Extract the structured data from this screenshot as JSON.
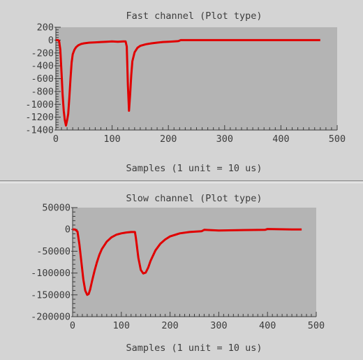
{
  "chart_data": [
    {
      "type": "line",
      "title": "Fast channel (Plot type)",
      "xlabel": "Samples (1 unit = 10 us)",
      "ylabel": "",
      "xlim": [
        0,
        500
      ],
      "ylim": [
        -1400,
        200
      ],
      "x_ticks": [
        "0",
        "100",
        "200",
        "300",
        "400",
        "500"
      ],
      "y_ticks": [
        "200",
        "0",
        "-200",
        "-400",
        "-600",
        "-800",
        "-1000",
        "-1200",
        "-1400"
      ],
      "x_tick_values": [
        0,
        100,
        200,
        300,
        400,
        500
      ],
      "y_tick_values": [
        200,
        0,
        -200,
        -400,
        -600,
        -800,
        -1000,
        -1200,
        -1400
      ],
      "plot_background": "#b4b4b4",
      "series": [
        {
          "color": "#e00000",
          "x": [
            0,
            4,
            6,
            8,
            10,
            12,
            14,
            16,
            18,
            20,
            22,
            24,
            26,
            28,
            30,
            33,
            36,
            40,
            45,
            50,
            60,
            70,
            80,
            90,
            100,
            110,
            120,
            124,
            126,
            128,
            130,
            132,
            134,
            136,
            140,
            145,
            150,
            160,
            170,
            180,
            190,
            200,
            210,
            218,
            222,
            250,
            300,
            350,
            400,
            450,
            470
          ],
          "y": [
            0,
            0,
            -20,
            -150,
            -500,
            -850,
            -1100,
            -1250,
            -1330,
            -1250,
            -1150,
            -900,
            -600,
            -350,
            -220,
            -150,
            -110,
            -80,
            -60,
            -50,
            -40,
            -35,
            -30,
            -25,
            -20,
            -25,
            -20,
            -20,
            -100,
            -700,
            -1100,
            -850,
            -550,
            -330,
            -190,
            -120,
            -90,
            -65,
            -50,
            -40,
            -30,
            -25,
            -20,
            -15,
            0,
            0,
            0,
            0,
            0,
            0,
            0
          ]
        }
      ]
    },
    {
      "type": "line",
      "title": "Slow channel (Plot type)",
      "xlabel": "Samples (1 unit = 10 us)",
      "ylabel": "",
      "xlim": [
        0,
        500
      ],
      "ylim": [
        -200000,
        50000
      ],
      "x_ticks": [
        "0",
        "100",
        "200",
        "300",
        "400",
        "500"
      ],
      "y_ticks": [
        "50000",
        "0",
        "-50000",
        "-100000",
        "-150000",
        "-200000"
      ],
      "x_tick_values": [
        0,
        100,
        200,
        300,
        400,
        500
      ],
      "y_tick_values": [
        50000,
        0,
        -50000,
        -100000,
        -150000,
        -200000
      ],
      "plot_background": "#b4b4b4",
      "series": [
        {
          "color": "#e00000",
          "x": [
            0,
            5,
            10,
            14,
            18,
            22,
            26,
            30,
            33,
            36,
            40,
            45,
            50,
            55,
            60,
            70,
            80,
            90,
            100,
            110,
            120,
            128,
            130,
            135,
            140,
            145,
            150,
            155,
            160,
            170,
            180,
            190,
            200,
            220,
            240,
            265,
            270,
            300,
            350,
            395,
            400,
            450,
            470
          ],
          "y": [
            0,
            0,
            -5000,
            -35000,
            -75000,
            -115000,
            -140000,
            -150000,
            -148000,
            -138000,
            -118000,
            -95000,
            -75000,
            -58000,
            -45000,
            -28000,
            -18000,
            -12000,
            -9000,
            -7000,
            -6000,
            -6000,
            -20000,
            -65000,
            -93000,
            -101000,
            -99000,
            -88000,
            -72000,
            -48000,
            -33000,
            -23000,
            -16000,
            -9000,
            -6000,
            -4000,
            -1000,
            -2500,
            -1500,
            -1000,
            1000,
            0,
            0
          ]
        }
      ]
    }
  ]
}
